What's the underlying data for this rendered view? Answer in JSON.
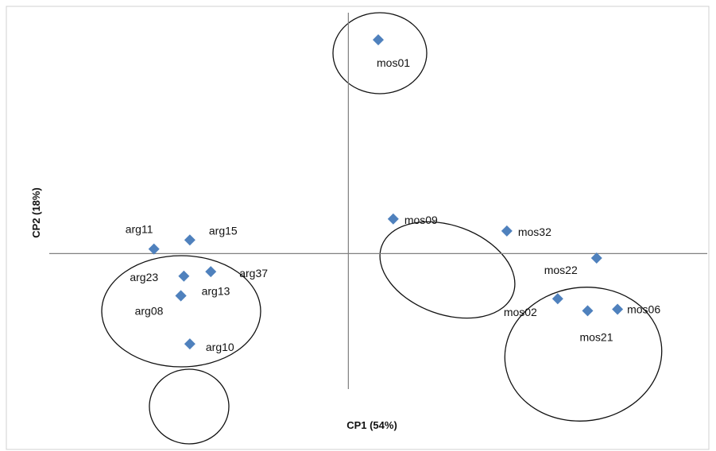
{
  "chart_data": {
    "type": "scatter",
    "xlabel": "CP1 (54%)",
    "ylabel": "CP2 (18%)",
    "xlim": [
      -1.0,
      1.2
    ],
    "ylim": [
      -0.9,
      1.6
    ],
    "marker_color": "#4f81bd",
    "axis_color": "#808080",
    "grid": false,
    "points": [
      {
        "label": "mos01",
        "x": 0.1,
        "y": 1.42
      },
      {
        "label": "mos09",
        "x": 0.15,
        "y": 0.23
      },
      {
        "label": "mos32",
        "x": 0.53,
        "y": 0.15
      },
      {
        "label": "mos22",
        "x": 0.83,
        "y": -0.03
      },
      {
        "label": "mos02",
        "x": 0.7,
        "y": -0.3
      },
      {
        "label": "mos21",
        "x": 0.8,
        "y": -0.38
      },
      {
        "label": "mos06",
        "x": 0.9,
        "y": -0.37
      },
      {
        "label": "arg11",
        "x": -0.65,
        "y": 0.03
      },
      {
        "label": "arg15",
        "x": -0.53,
        "y": 0.09
      },
      {
        "label": "arg23",
        "x": -0.55,
        "y": -0.15
      },
      {
        "label": "arg37",
        "x": -0.46,
        "y": -0.12
      },
      {
        "label": "arg13",
        "x": -0.56,
        "y": -0.28
      },
      {
        "label": "arg08",
        "x": -0.56,
        "y": -0.28
      },
      {
        "label": "arg10",
        "x": -0.53,
        "y": -0.6
      }
    ],
    "clusters": [
      {
        "members": [
          "mos01"
        ]
      },
      {
        "members": [
          "mos09",
          "mos32"
        ]
      },
      {
        "members": [
          "mos22",
          "mos02",
          "mos21",
          "mos06"
        ]
      },
      {
        "members": [
          "arg11",
          "arg15",
          "arg23",
          "arg37",
          "arg13",
          "arg08"
        ]
      },
      {
        "members": [
          "arg10"
        ]
      }
    ]
  }
}
